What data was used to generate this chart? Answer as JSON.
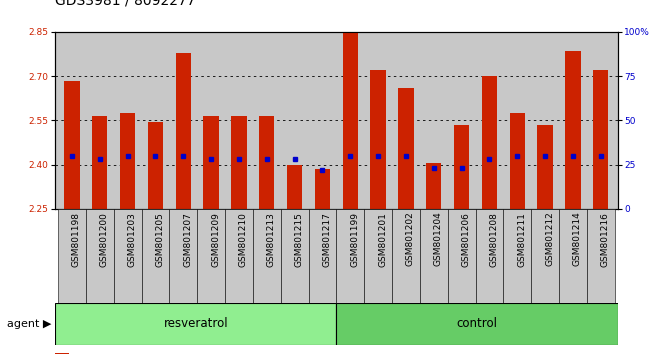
{
  "title": "GDS3981 / 8092277",
  "samples": [
    "GSM801198",
    "GSM801200",
    "GSM801203",
    "GSM801205",
    "GSM801207",
    "GSM801209",
    "GSM801210",
    "GSM801213",
    "GSM801215",
    "GSM801217",
    "GSM801199",
    "GSM801201",
    "GSM801202",
    "GSM801204",
    "GSM801206",
    "GSM801208",
    "GSM801211",
    "GSM801212",
    "GSM801214",
    "GSM801216"
  ],
  "transformed_count": [
    2.685,
    2.565,
    2.575,
    2.545,
    2.78,
    2.565,
    2.565,
    2.565,
    2.4,
    2.385,
    2.845,
    2.72,
    2.66,
    2.405,
    2.535,
    2.7,
    2.575,
    2.535,
    2.785,
    2.72
  ],
  "percentile_rank": [
    30,
    28,
    30,
    30,
    30,
    28,
    28,
    28,
    28,
    22,
    30,
    30,
    30,
    23,
    23,
    28,
    30,
    30,
    30,
    30
  ],
  "groups": [
    {
      "label": "resveratrol",
      "start": 0,
      "end": 10,
      "color": "#90EE90"
    },
    {
      "label": "control",
      "start": 10,
      "end": 20,
      "color": "#66CC66"
    }
  ],
  "group_label": "agent",
  "ylim_left": [
    2.25,
    2.85
  ],
  "ylim_right": [
    0,
    100
  ],
  "yticks_left": [
    2.25,
    2.4,
    2.55,
    2.7,
    2.85
  ],
  "yticks_right": [
    0,
    25,
    50,
    75,
    100
  ],
  "bar_color": "#CC2200",
  "percentile_color": "#0000CC",
  "background_color": "#C8C8C8",
  "xtick_bg_color": "#C8C8C8",
  "grid_color": "#000000",
  "title_fontsize": 10,
  "tick_fontsize": 6.5,
  "legend_fontsize": 8
}
